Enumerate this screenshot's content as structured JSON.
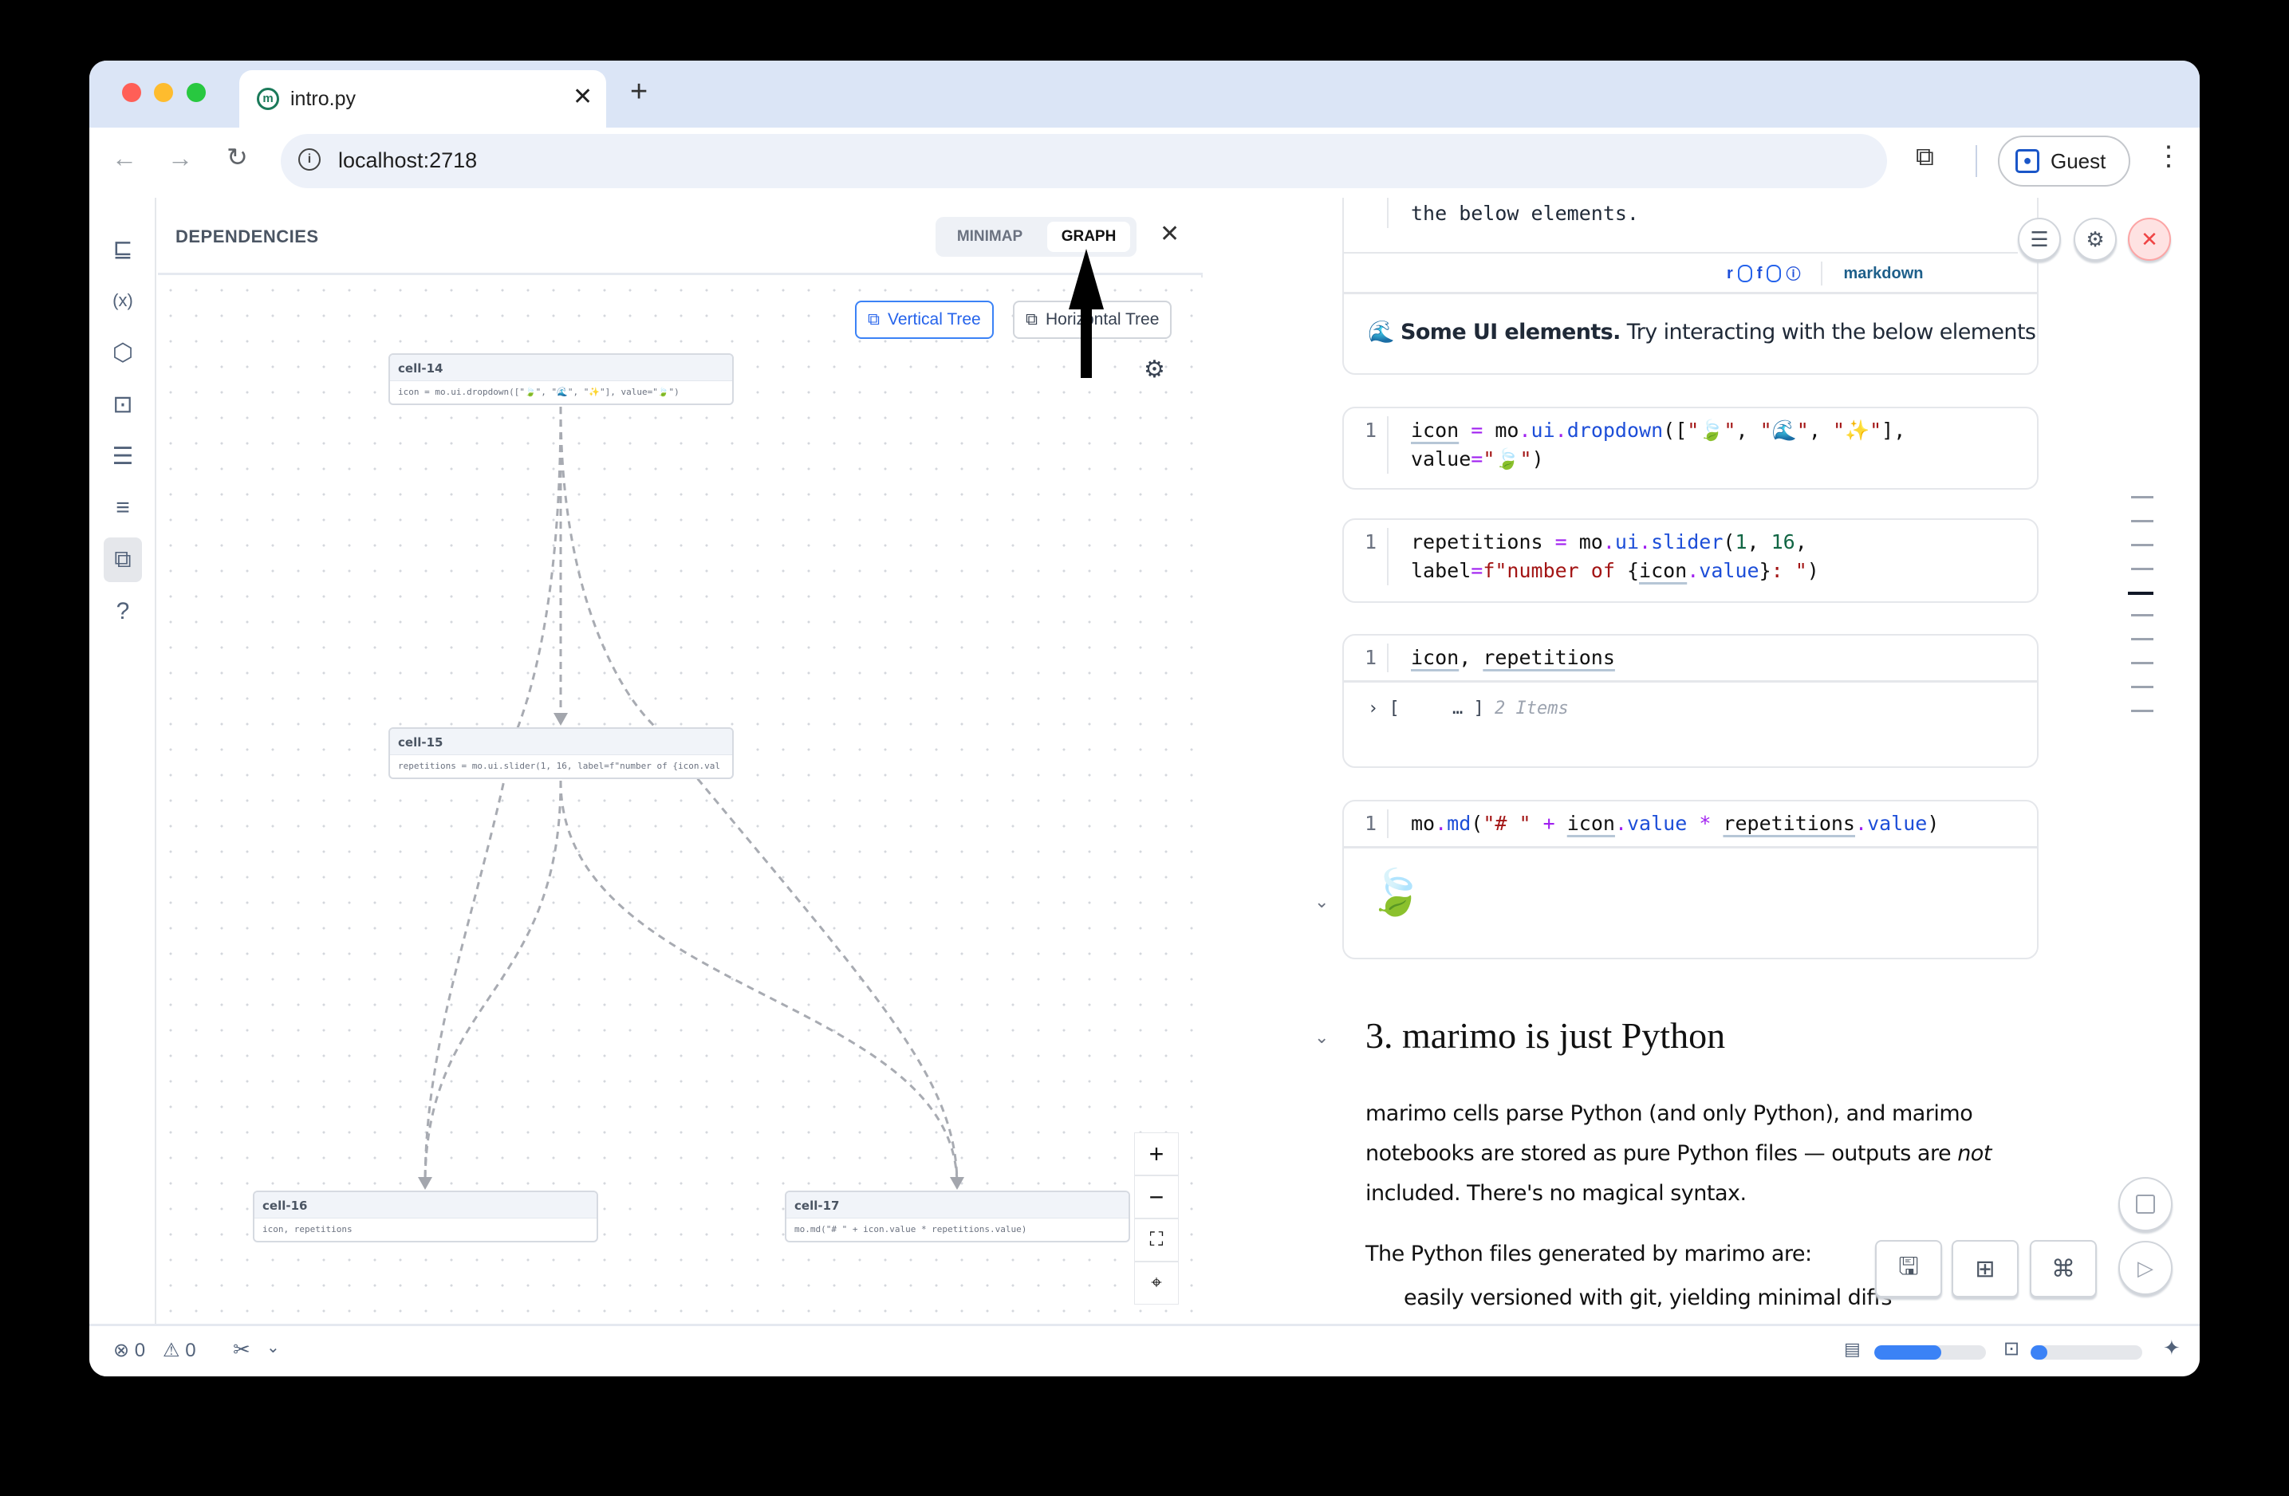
{
  "browser": {
    "tab_title": "intro.py",
    "url": "localhost:2718",
    "profile": "Guest",
    "new_tab": "+"
  },
  "sidebar": {
    "items": [
      {
        "name": "file-explorer-icon",
        "glyph": "⊑"
      },
      {
        "name": "variables-icon",
        "glyph": "(x)"
      },
      {
        "name": "packages-icon",
        "glyph": "⬡"
      },
      {
        "name": "ai-assistant-icon",
        "glyph": "⊡"
      },
      {
        "name": "logs-icon",
        "glyph": "☰"
      },
      {
        "name": "outline-search-icon",
        "glyph": "≡"
      },
      {
        "name": "dependencies-icon",
        "glyph": "⧉",
        "active": true
      },
      {
        "name": "help-icon",
        "glyph": "?"
      }
    ]
  },
  "dependencies": {
    "title": "DEPENDENCIES",
    "tabs": [
      {
        "label": "MINIMAP",
        "active": false
      },
      {
        "label": "GRAPH",
        "active": true
      }
    ],
    "layout_buttons": {
      "vertical": "Vertical Tree",
      "horizontal": "Horizontal Tree",
      "selected": "vertical"
    },
    "nodes": [
      {
        "id": "cell-14",
        "code": "icon = mo.ui.dropdown([\"🍃\", \"🌊\", \"✨\"], value=\"🍃\")"
      },
      {
        "id": "cell-15",
        "code": "repetitions = mo.ui.slider(1, 16, label=f\"number of {icon.val"
      },
      {
        "id": "cell-16",
        "code": "icon, repetitions"
      },
      {
        "id": "cell-17",
        "code": "mo.md(\"# \" + icon.value * repetitions.value)"
      }
    ],
    "edges": [
      [
        "cell-14",
        "cell-15"
      ],
      [
        "cell-14",
        "cell-16"
      ],
      [
        "cell-14",
        "cell-17"
      ],
      [
        "cell-15",
        "cell-16"
      ],
      [
        "cell-15",
        "cell-17"
      ]
    ],
    "zoom_controls": {
      "in": "+",
      "out": "−"
    }
  },
  "notebook": {
    "cell1": {
      "line_no": "1",
      "code_tail": "the below elements.",
      "footer": {
        "r": "r",
        "f": "f",
        "type": "markdown"
      },
      "output_emoji": "🌊",
      "output_bold": "Some UI elements.",
      "output_rest": " Try interacting with the below elements."
    },
    "cells": [
      {
        "line_no": "1",
        "lines": [
          [
            [
              "icon",
              "var u0"
            ],
            [
              " = ",
              "op"
            ],
            [
              "mo",
              "var"
            ],
            [
              ".",
              "op"
            ],
            [
              "ui",
              "fn"
            ],
            [
              ".",
              "op"
            ],
            [
              "dropdown",
              "fn"
            ],
            [
              "([",
              "p"
            ],
            [
              "\"🍃\"",
              "str"
            ],
            [
              ", ",
              "p"
            ],
            [
              "\"🌊\"",
              "str"
            ],
            [
              ", ",
              "p"
            ],
            [
              "\"✨\"",
              "str"
            ],
            [
              "],",
              "p"
            ]
          ],
          [
            [
              "value",
              "var"
            ],
            [
              "=",
              "op"
            ],
            [
              "\"🍃\"",
              "str"
            ],
            [
              ")",
              "p"
            ]
          ]
        ]
      },
      {
        "line_no": "1",
        "lines": [
          [
            [
              "repetitions",
              "var"
            ],
            [
              " = ",
              "op"
            ],
            [
              "mo",
              "var"
            ],
            [
              ".",
              "op"
            ],
            [
              "ui",
              "fn"
            ],
            [
              ".",
              "op"
            ],
            [
              "slider",
              "fn"
            ],
            [
              "(",
              "p"
            ],
            [
              "1",
              "num"
            ],
            [
              ", ",
              "p"
            ],
            [
              "16",
              "num"
            ],
            [
              ",",
              "p"
            ]
          ],
          [
            [
              "label",
              "var"
            ],
            [
              "=",
              "op"
            ],
            [
              "f\"number of ",
              "str"
            ],
            [
              "{",
              "p"
            ],
            [
              "icon",
              "var u"
            ],
            [
              ".",
              "op"
            ],
            [
              "value",
              "fn"
            ],
            [
              "}",
              "p"
            ],
            [
              ": \"",
              "str"
            ],
            [
              ")",
              "p"
            ]
          ]
        ]
      },
      {
        "line_no": "1",
        "lines": [
          [
            [
              "icon",
              "var u"
            ],
            [
              ", ",
              "p"
            ],
            [
              "repetitions",
              "var u"
            ]
          ]
        ],
        "output": {
          "arrow": "›",
          "open": "[",
          "ellipsis": "…",
          "close": "]",
          "count": "2 Items"
        }
      },
      {
        "line_no": "1",
        "lines": [
          [
            [
              "mo",
              "var"
            ],
            [
              ".",
              "op"
            ],
            [
              "md",
              "fn"
            ],
            [
              "(",
              "p"
            ],
            [
              "\"# \"",
              "str"
            ],
            [
              " + ",
              "op"
            ],
            [
              "icon",
              "var u"
            ],
            [
              ".",
              "op"
            ],
            [
              "value",
              "fn"
            ],
            [
              " * ",
              "op"
            ],
            [
              "repetitions",
              "var u"
            ],
            [
              ".",
              "op"
            ],
            [
              "value",
              "fn"
            ],
            [
              ")",
              "p"
            ]
          ]
        ],
        "output_emoji": "🍃"
      }
    ],
    "heading": "3. marimo is just Python",
    "para1_a": "marimo cells parse Python (and only Python), and marimo",
    "para1_b": "notebooks are stored as pure Python files — outputs are ",
    "para1_em": "not",
    "para1_c": "included. There's no magical syntax.",
    "para2": "The Python files generated by marimo are:",
    "para3_cut": "easily versioned with git, yielding minimal diffs"
  },
  "status": {
    "errors": "0",
    "warnings": "0",
    "memory_usage": 0.6,
    "cpu_usage": 0.15
  },
  "colors": {
    "accent": "#3b82f6",
    "tabbar": "#dbe5f6",
    "close_red": "#ef4444"
  }
}
